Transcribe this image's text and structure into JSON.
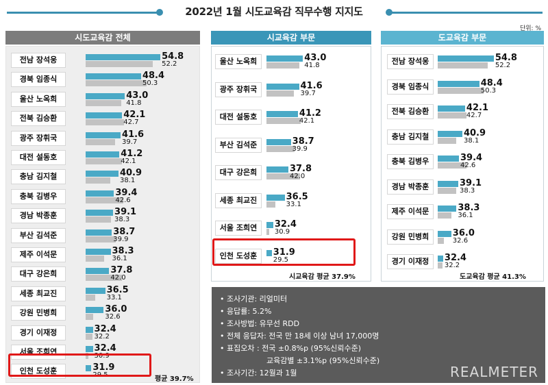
{
  "title": "2022년 1월 시도교육감 직무수행 지지도",
  "unit": "단위: %",
  "panels": {
    "all": {
      "header": "시도교육감 전체",
      "avg_label": "평균 39.7%"
    },
    "city": {
      "header": "시교육감 부문",
      "avg_label": "시교육감 평균 37.9%"
    },
    "province": {
      "header": "도교육감 부문",
      "avg_label": "도교육감 평균 41.3%"
    }
  },
  "chart_data": [
    {
      "type": "bar",
      "panel": "시도교육감 전체",
      "categories": [
        "전남 장석웅",
        "경북 임종식",
        "울산 노옥희",
        "전북 김승환",
        "광주 장휘국",
        "대전 설동호",
        "충남 김지철",
        "충북 김병우",
        "경남 박종훈",
        "부산 김석준",
        "제주 이석문",
        "대구 강은희",
        "세종 최교진",
        "강원 민병희",
        "경기 이재정",
        "서울 조희연",
        "인천 도성훈"
      ],
      "series": [
        {
          "values": [
            54.8,
            48.4,
            43.0,
            42.1,
            41.6,
            41.2,
            40.9,
            39.4,
            39.1,
            38.7,
            38.3,
            37.8,
            36.5,
            36.0,
            32.4,
            32.4,
            31.9
          ],
          "labels": [
            "54.8",
            "48.4",
            "43.0",
            "42.1",
            "41.6",
            "41.2",
            "40.9",
            "39.4",
            "39.1",
            "38.7",
            "38.3",
            "37.8",
            "36.5",
            "36.0",
            "32.4",
            "32.4",
            "31.9"
          ]
        },
        {
          "values": [
            52.2,
            50.3,
            41.8,
            42.7,
            39.7,
            42.1,
            38.1,
            42.6,
            38.3,
            39.9,
            36.1,
            42.0,
            33.1,
            32.6,
            32.2,
            30.9,
            29.5
          ],
          "labels": [
            "52.2",
            "50.3",
            "41.8",
            "42.7",
            "39.7",
            "42.1",
            "38.1",
            "42.6",
            "38.3",
            "39.9",
            "36.1",
            "42.0",
            "33.1",
            "32.6",
            "32.2",
            "30.9",
            "29.5"
          ]
        }
      ],
      "highlight": "인천 도성훈"
    },
    {
      "type": "bar",
      "panel": "시교육감 부문",
      "categories": [
        "울산 노옥희",
        "광주 장휘국",
        "대전 설동호",
        "부산 김석준",
        "대구 강은희",
        "세종 최교진",
        "서울 조희연",
        "인천 도성훈"
      ],
      "series": [
        {
          "values": [
            43.0,
            41.6,
            41.2,
            38.7,
            37.8,
            36.5,
            32.4,
            31.9
          ],
          "labels": [
            "43.0",
            "41.6",
            "41.2",
            "38.7",
            "37.8",
            "36.5",
            "32.4",
            "31.9"
          ]
        },
        {
          "values": [
            41.8,
            39.7,
            42.1,
            39.9,
            42.0,
            33.1,
            30.9,
            29.5
          ],
          "labels": [
            "41.8",
            "39.7",
            "42.1",
            "39.9",
            "42.0",
            "33.1",
            "30.9",
            "29.5"
          ]
        }
      ],
      "highlight": "인천 도성훈"
    },
    {
      "type": "bar",
      "panel": "도교육감 부문",
      "categories": [
        "전남 장석웅",
        "경북 임종식",
        "전북 김승환",
        "충남 김지철",
        "충북 김병우",
        "경남 박종훈",
        "제주 이석문",
        "강원 민병희",
        "경기 이재정"
      ],
      "series": [
        {
          "values": [
            54.8,
            48.4,
            42.1,
            40.9,
            39.4,
            39.1,
            38.3,
            36.0,
            32.4
          ],
          "labels": [
            "54.8",
            "48.4",
            "42.1",
            "40.9",
            "39.4",
            "39.1",
            "38.3",
            "36.0",
            "32.4"
          ]
        },
        {
          "values": [
            52.2,
            50.3,
            42.7,
            38.1,
            42.6,
            38.3,
            36.1,
            32.6,
            32.2
          ],
          "labels": [
            "52.2",
            "50.3",
            "42.7",
            "38.1",
            "42.6",
            "38.3",
            "36.1",
            "32.6",
            "32.2"
          ]
        }
      ]
    }
  ],
  "info": {
    "lines": [
      "• 조사기관: 리얼미터",
      "• 응답률: 5.2%",
      "• 조사방법: 유무선 RDD",
      "• 전체 응답자: 전국 만 18세 이상 남녀 17,000명",
      "• 표집오차 : 전국 ±0.8%p (95%신뢰수준)",
      "교육감별 ±3.1%p (95%신뢰수준)",
      "• 조사기간: 12월과 1월"
    ],
    "brand": "REALMETER"
  },
  "colors": {
    "accent": "#3a8fb0",
    "bar_current": "#4aa9c6",
    "bar_previous": "#c2c2c2",
    "highlight": "#e01818",
    "info_bg": "#5b5b5b",
    "head_all": "#7c7c7c",
    "head_city": "#3a96b8",
    "head_province": "#5bb4d0"
  }
}
